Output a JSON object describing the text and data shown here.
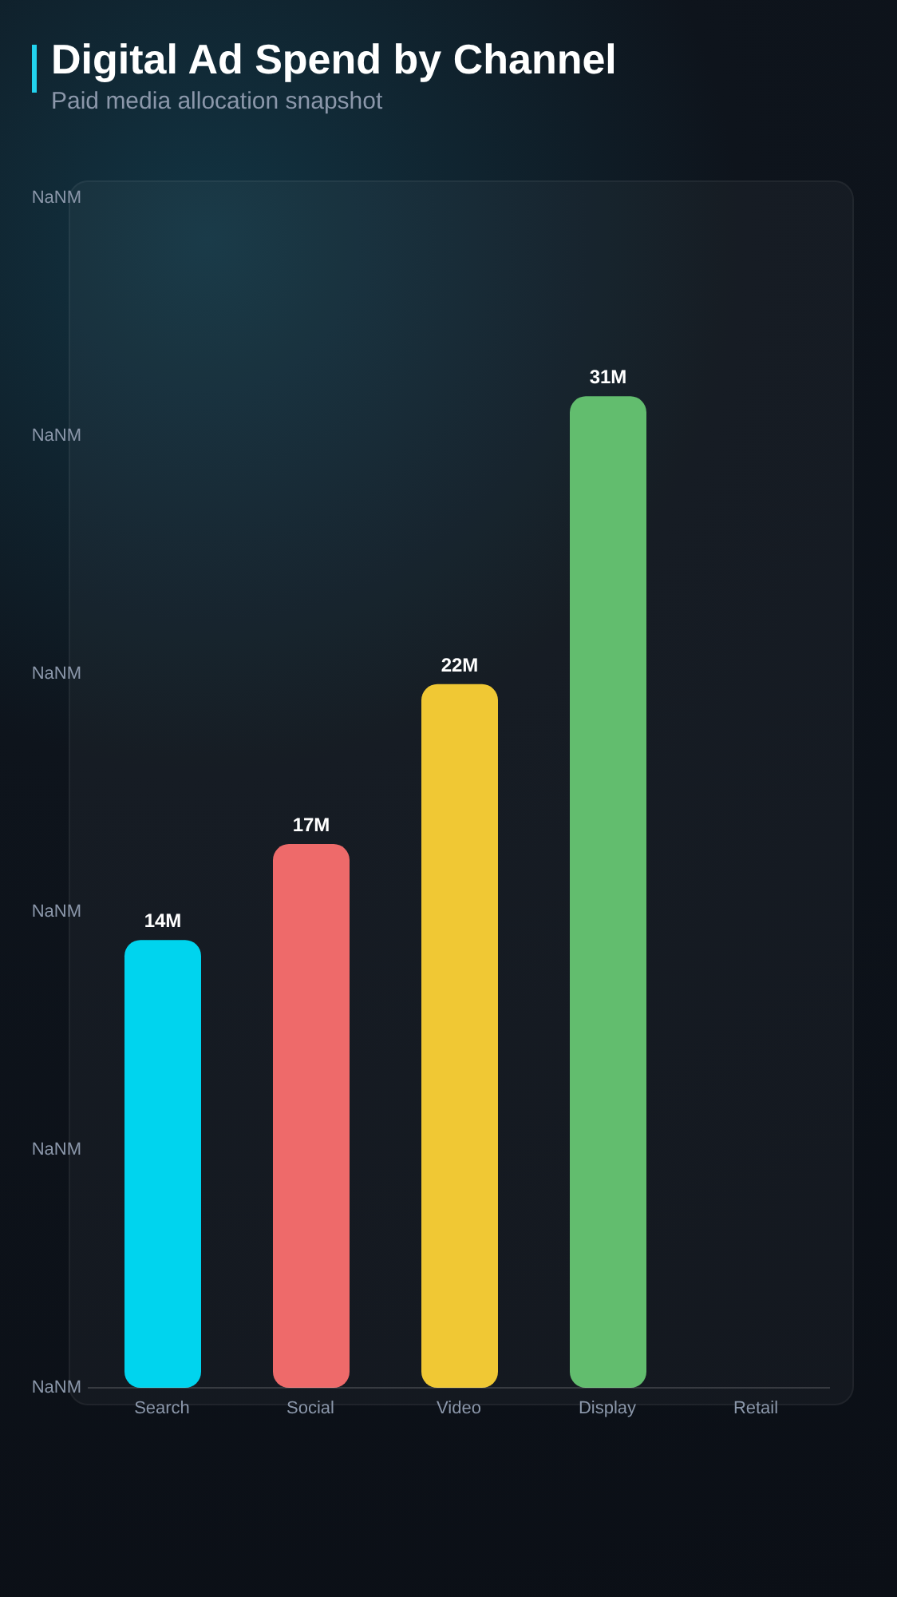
{
  "chart_data": {
    "type": "bar",
    "title": "Digital Ad Spend by Channel",
    "subtitle": "Paid media allocation snapshot",
    "categories": [
      "Search",
      "Social",
      "Video",
      "Display",
      "Retail"
    ],
    "values": [
      14,
      17,
      22,
      31,
      null
    ],
    "value_labels": [
      "14M",
      "17M",
      "22M",
      "31M",
      null
    ],
    "colors": [
      "#00d4ee",
      "#ee6a6a",
      "#f0c834",
      "#62bd6e",
      null
    ],
    "annotations": [
      "NaNM",
      "NaNM",
      "NaNM",
      "NaNM",
      "NaNM",
      "NaNM"
    ],
    "legend": false,
    "grid": false
  }
}
